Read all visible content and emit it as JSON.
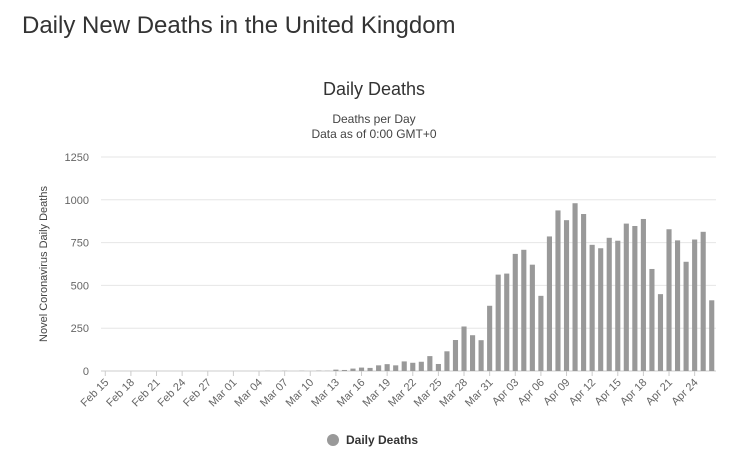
{
  "page": {
    "heading": "Daily New Deaths in the United Kingdom"
  },
  "chart_data": {
    "type": "bar",
    "title": "Daily Deaths",
    "subtitle_lines": [
      "Deaths per Day",
      "Data as of 0:00 GMT+0"
    ],
    "ylabel": "Novel Coronavirus Daily Deaths",
    "xlabel": "",
    "ylim": [
      0,
      1250
    ],
    "yticks": [
      0,
      250,
      500,
      750,
      1000,
      1250
    ],
    "grid": true,
    "color": "#999999",
    "legend": {
      "label": "Daily Deaths",
      "position": "bottom-center"
    },
    "categories": [
      "Feb 15",
      "Feb 16",
      "Feb 17",
      "Feb 18",
      "Feb 19",
      "Feb 20",
      "Feb 21",
      "Feb 22",
      "Feb 23",
      "Feb 24",
      "Feb 25",
      "Feb 26",
      "Feb 27",
      "Feb 28",
      "Feb 29",
      "Mar 01",
      "Mar 02",
      "Mar 03",
      "Mar 04",
      "Mar 05",
      "Mar 06",
      "Mar 07",
      "Mar 08",
      "Mar 09",
      "Mar 10",
      "Mar 11",
      "Mar 12",
      "Mar 13",
      "Mar 14",
      "Mar 15",
      "Mar 16",
      "Mar 17",
      "Mar 18",
      "Mar 19",
      "Mar 20",
      "Mar 21",
      "Mar 22",
      "Mar 23",
      "Mar 24",
      "Mar 25",
      "Mar 26",
      "Mar 27",
      "Mar 28",
      "Mar 29",
      "Mar 30",
      "Mar 31",
      "Apr 01",
      "Apr 02",
      "Apr 03",
      "Apr 04",
      "Apr 05",
      "Apr 06",
      "Apr 07",
      "Apr 08",
      "Apr 09",
      "Apr 10",
      "Apr 11",
      "Apr 12",
      "Apr 13",
      "Apr 14",
      "Apr 15",
      "Apr 16",
      "Apr 17",
      "Apr 18",
      "Apr 19",
      "Apr 20",
      "Apr 21",
      "Apr 22",
      "Apr 23",
      "Apr 24",
      "Apr 25",
      "Apr 26"
    ],
    "tick_labels": [
      "Feb 15",
      "Feb 18",
      "Feb 21",
      "Feb 24",
      "Feb 27",
      "Mar 01",
      "Mar 04",
      "Mar 07",
      "Mar 10",
      "Mar 13",
      "Mar 16",
      "Mar 19",
      "Mar 22",
      "Mar 25",
      "Mar 28",
      "Mar 31",
      "Apr 03",
      "Apr 06",
      "Apr 09",
      "Apr 12",
      "Apr 15",
      "Apr 18",
      "Apr 21",
      "Apr 24"
    ],
    "values": [
      0,
      0,
      0,
      0,
      0,
      0,
      0,
      0,
      0,
      0,
      0,
      0,
      0,
      0,
      0,
      0,
      0,
      0,
      0,
      1,
      0,
      1,
      0,
      1,
      0,
      2,
      1,
      8,
      6,
      14,
      20,
      18,
      33,
      40,
      33,
      56,
      48,
      54,
      87,
      41,
      115,
      181,
      260,
      209,
      180,
      381,
      563,
      569,
      684,
      708,
      621,
      439,
      786,
      938,
      881,
      980,
      917,
      737,
      717,
      778,
      761,
      861,
      847,
      888,
      596,
      449,
      828,
      763,
      638,
      768,
      813,
      413
    ]
  }
}
